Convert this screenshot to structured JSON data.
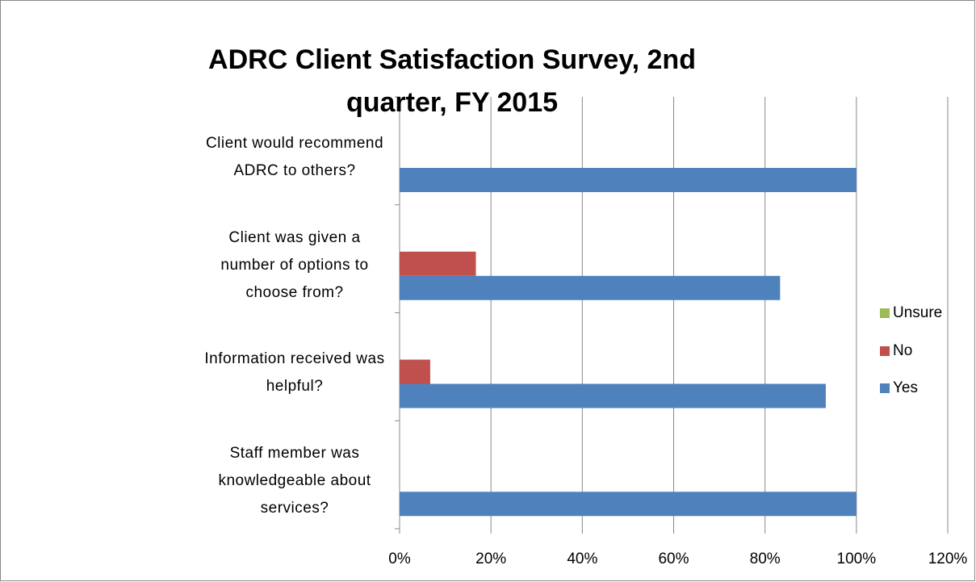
{
  "chart_data": {
    "type": "hbar",
    "title": "ADRC Client Satisfaction Survey, 2nd quarter, FY 2015",
    "categories": [
      "Client would recommend ADRC to others?",
      "Client was given a number of options to choose from?",
      "Information received was helpful?",
      "Staff member was knowledgeable about services?"
    ],
    "series": [
      {
        "name": "Unsure",
        "color": "#9bbb59",
        "values": [
          0,
          0,
          0,
          0
        ]
      },
      {
        "name": "No",
        "color": "#c0504d",
        "values": [
          0,
          16.7,
          6.7,
          0
        ]
      },
      {
        "name": "Yes",
        "color": "#4f81bd",
        "values": [
          100,
          83.3,
          93.3,
          100
        ]
      }
    ],
    "xlim": [
      0,
      120
    ],
    "xticks": [
      {
        "value": 0,
        "label": "0%"
      },
      {
        "value": 20,
        "label": "20%"
      },
      {
        "value": 40,
        "label": "40%"
      },
      {
        "value": 60,
        "label": "60%"
      },
      {
        "value": 80,
        "label": "80%"
      },
      {
        "value": 100,
        "label": "100%"
      },
      {
        "value": 120,
        "label": "120%"
      }
    ],
    "grid": true,
    "legend": "right"
  }
}
